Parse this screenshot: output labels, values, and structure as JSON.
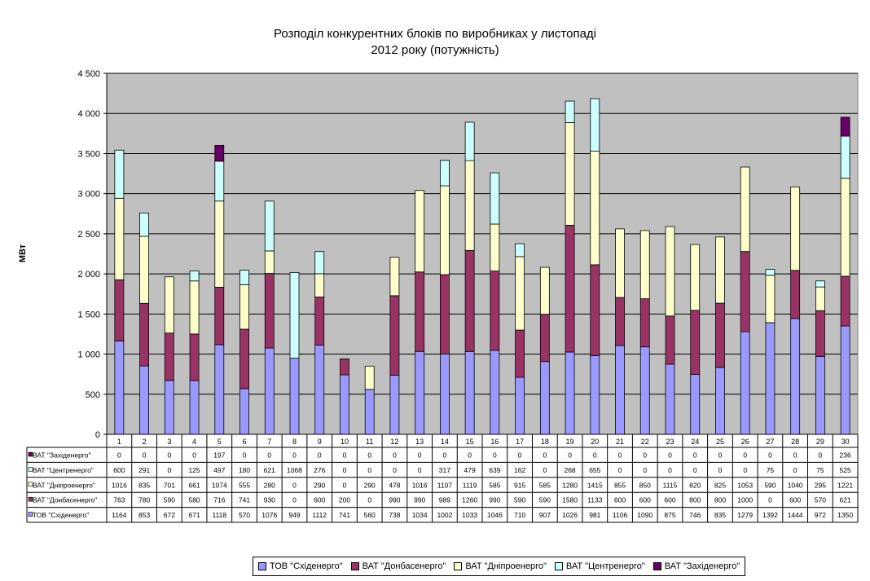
{
  "chart_data": {
    "type": "bar",
    "stacked": true,
    "title_line1": "Розподіл конкурентних блоків по виробниках у листопаді",
    "title_line2": "2012 року (потужність)",
    "ylabel": "МВт",
    "xlabel": "",
    "ylim": [
      0,
      4500
    ],
    "yticks": [
      "0",
      "500",
      "1 000",
      "1 500",
      "2 000",
      "2 500",
      "3 000",
      "3 500",
      "4 000",
      "4 500"
    ],
    "ytick_values": [
      0,
      500,
      1000,
      1500,
      2000,
      2500,
      3000,
      3500,
      4000,
      4500
    ],
    "grid": true,
    "legend_position": "bottom",
    "categories": [
      "1",
      "2",
      "3",
      "4",
      "5",
      "6",
      "7",
      "8",
      "9",
      "10",
      "11",
      "12",
      "13",
      "14",
      "15",
      "16",
      "17",
      "18",
      "19",
      "20",
      "21",
      "22",
      "23",
      "24",
      "25",
      "26",
      "27",
      "28",
      "29",
      "30"
    ],
    "series": [
      {
        "name": "ТОВ \"Східенерго\"",
        "color": "#9999ff",
        "values": [
          1164,
          853,
          672,
          671,
          1118,
          570,
          1076,
          949,
          1112,
          741,
          560,
          738,
          1034,
          1002,
          1033,
          1046,
          710,
          907,
          1026,
          981,
          1106,
          1090,
          875,
          746,
          835,
          1279,
          1392,
          1444,
          972,
          1350
        ]
      },
      {
        "name": "ВАТ \"Донбасенерго\"",
        "color": "#993366",
        "values": [
          763,
          780,
          590,
          580,
          716,
          741,
          930,
          0,
          600,
          200,
          0,
          990,
          990,
          989,
          1260,
          990,
          590,
          590,
          1580,
          1133,
          600,
          600,
          600,
          800,
          800,
          1000,
          0,
          600,
          570,
          621
        ]
      },
      {
        "name": "ВАТ \"Дніпроенерго\"",
        "color": "#ffffcc",
        "values": [
          1016,
          835,
          701,
          661,
          1074,
          555,
          280,
          0,
          290,
          0,
          290,
          478,
          1016,
          1107,
          1119,
          585,
          915,
          585,
          1280,
          1415,
          855,
          850,
          1115,
          820,
          825,
          1053,
          590,
          1040,
          295,
          1221
        ]
      },
      {
        "name": "ВАТ \"Центренерго\"",
        "color": "#ccffff",
        "values": [
          600,
          291,
          0,
          125,
          497,
          180,
          621,
          1068,
          276,
          0,
          0,
          0,
          0,
          317,
          479,
          639,
          162,
          0,
          268,
          655,
          0,
          0,
          0,
          0,
          0,
          0,
          75,
          0,
          75,
          525
        ]
      },
      {
        "name": "ВАТ \"Західенерго\"",
        "color": "#660066",
        "values": [
          0,
          0,
          0,
          0,
          197,
          0,
          0,
          0,
          0,
          0,
          0,
          0,
          0,
          0,
          0,
          0,
          0,
          0,
          0,
          0,
          0,
          0,
          0,
          0,
          0,
          0,
          0,
          0,
          0,
          236
        ]
      }
    ],
    "table_row_order": [
      4,
      3,
      2,
      1,
      0
    ],
    "plot_background": "#c0c0c0"
  }
}
